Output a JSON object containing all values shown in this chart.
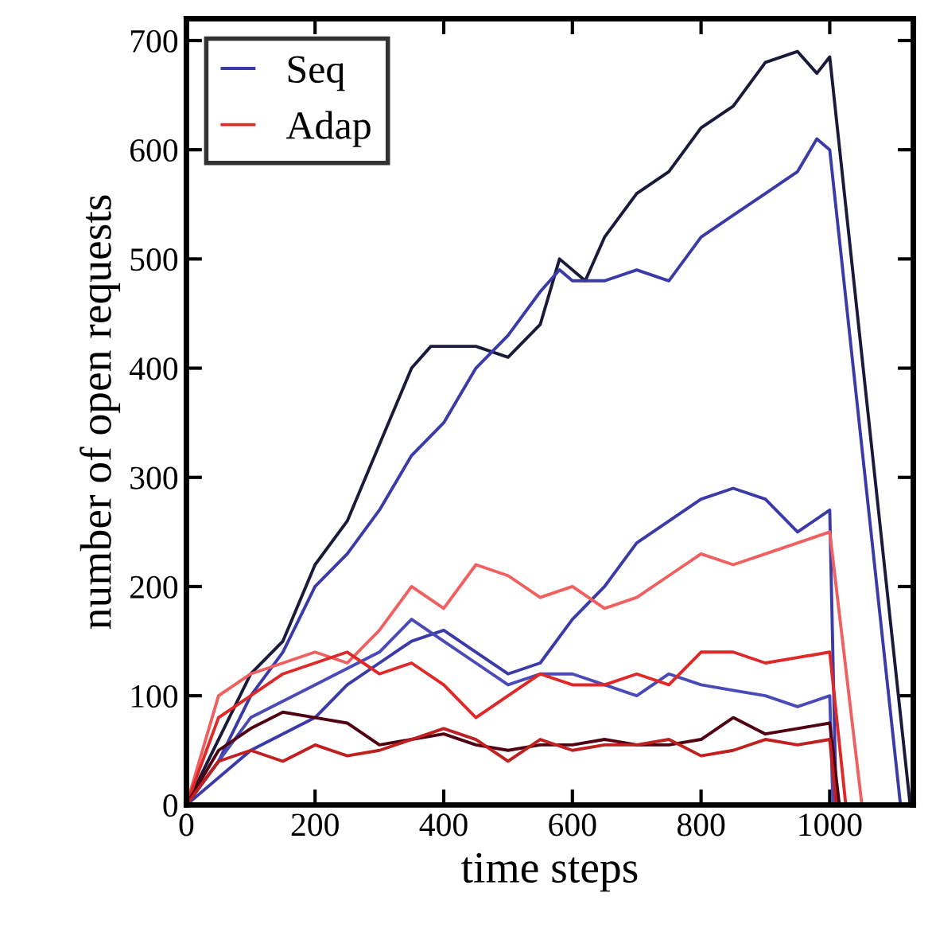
{
  "chart_data": {
    "type": "line",
    "xlabel": "time steps",
    "ylabel": "number of open requests",
    "xlim": [
      0,
      1130
    ],
    "ylim": [
      0,
      720
    ],
    "xticks": [
      0,
      200,
      400,
      600,
      800,
      1000
    ],
    "yticks": [
      0,
      100,
      200,
      300,
      400,
      500,
      600,
      700
    ],
    "grid": false,
    "legend": "top left",
    "marker": "none",
    "line_style": "solid",
    "series": [
      {
        "color": "#1a1a3a",
        "x": [
          0,
          50,
          100,
          150,
          200,
          250,
          300,
          350,
          380,
          450,
          500,
          550,
          580,
          620,
          650,
          700,
          750,
          800,
          850,
          900,
          950,
          980,
          1000,
          1125
        ],
        "values": [
          0,
          60,
          120,
          150,
          220,
          260,
          330,
          400,
          420,
          420,
          410,
          440,
          500,
          480,
          520,
          560,
          580,
          620,
          640,
          680,
          690,
          670,
          685,
          0
        ]
      },
      {
        "name": "Seq",
        "color": "#3a3aa8",
        "x": [
          0,
          50,
          100,
          150,
          200,
          250,
          300,
          350,
          400,
          450,
          500,
          550,
          580,
          600,
          650,
          700,
          750,
          800,
          850,
          900,
          950,
          980,
          1000,
          1110
        ],
        "values": [
          0,
          40,
          100,
          140,
          200,
          230,
          270,
          320,
          350,
          400,
          430,
          470,
          490,
          480,
          480,
          490,
          480,
          520,
          540,
          560,
          580,
          610,
          600,
          0
        ]
      },
      {
        "color": "#3a3aa8",
        "x": [
          0,
          100,
          200,
          250,
          300,
          350,
          400,
          450,
          500,
          550,
          600,
          650,
          700,
          750,
          800,
          850,
          900,
          950,
          1000,
          1010
        ],
        "values": [
          0,
          50,
          80,
          110,
          130,
          150,
          160,
          140,
          120,
          130,
          170,
          200,
          240,
          260,
          280,
          290,
          280,
          250,
          270,
          0
        ]
      },
      {
        "color": "#4a4ab8",
        "x": [
          0,
          100,
          200,
          300,
          350,
          400,
          450,
          500,
          550,
          600,
          650,
          700,
          750,
          800,
          850,
          900,
          950,
          1000,
          1005
        ],
        "values": [
          0,
          80,
          110,
          140,
          170,
          150,
          130,
          110,
          120,
          120,
          110,
          100,
          120,
          110,
          105,
          100,
          90,
          100,
          0
        ]
      },
      {
        "color": "#f06060",
        "x": [
          0,
          50,
          100,
          150,
          200,
          250,
          300,
          350,
          400,
          450,
          500,
          550,
          600,
          650,
          700,
          750,
          800,
          850,
          900,
          950,
          1000,
          1050
        ],
        "values": [
          0,
          100,
          120,
          130,
          140,
          130,
          160,
          200,
          180,
          220,
          210,
          190,
          200,
          180,
          190,
          210,
          230,
          220,
          230,
          240,
          250,
          0
        ]
      },
      {
        "name": "Adap",
        "color": "#e02828",
        "x": [
          0,
          50,
          100,
          150,
          200,
          250,
          300,
          350,
          400,
          450,
          500,
          550,
          600,
          650,
          700,
          750,
          800,
          850,
          900,
          950,
          1000,
          1025
        ],
        "values": [
          0,
          80,
          100,
          120,
          130,
          140,
          120,
          130,
          110,
          80,
          100,
          120,
          110,
          110,
          120,
          110,
          140,
          140,
          130,
          135,
          140,
          0
        ]
      },
      {
        "color": "#500010",
        "x": [
          0,
          50,
          100,
          150,
          200,
          250,
          300,
          350,
          400,
          450,
          500,
          550,
          600,
          650,
          700,
          750,
          800,
          850,
          900,
          950,
          1000,
          1015
        ],
        "values": [
          0,
          50,
          70,
          85,
          80,
          75,
          55,
          60,
          65,
          55,
          50,
          55,
          55,
          60,
          55,
          55,
          60,
          80,
          65,
          70,
          75,
          0
        ]
      },
      {
        "color": "#c02020",
        "x": [
          0,
          50,
          100,
          150,
          200,
          250,
          300,
          350,
          400,
          450,
          500,
          550,
          600,
          650,
          700,
          750,
          800,
          850,
          900,
          950,
          1000,
          1010
        ],
        "values": [
          0,
          40,
          50,
          40,
          55,
          45,
          50,
          60,
          70,
          60,
          40,
          60,
          50,
          55,
          55,
          60,
          45,
          50,
          60,
          55,
          60,
          0
        ]
      }
    ]
  }
}
